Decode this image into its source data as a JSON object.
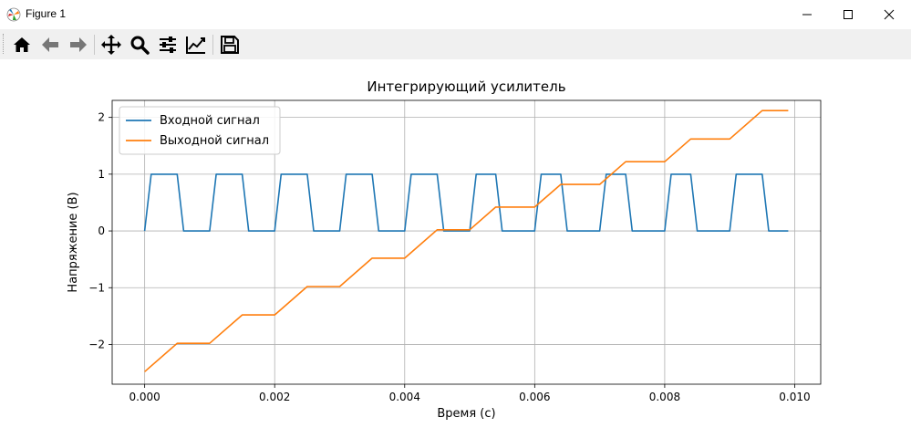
{
  "window": {
    "title": "Figure 1",
    "controls": {
      "minimize": "minimize-icon",
      "maximize": "maximize-icon",
      "close": "close-icon"
    }
  },
  "toolbar": {
    "buttons": [
      "home-icon",
      "back-arrow-icon",
      "forward-arrow-icon",
      "pan-icon",
      "zoom-icon",
      "configure-subplots-icon",
      "edit-axis-icon",
      "save-icon"
    ]
  },
  "chart_data": {
    "type": "line",
    "title": "Интегрирующий усилитель",
    "xlabel": "Время (с)",
    "ylabel": "Напряжение (В)",
    "xlim": [
      -0.0005,
      0.0104
    ],
    "ylim": [
      -2.7,
      2.3
    ],
    "xticks": [
      0.0,
      0.002,
      0.004,
      0.006,
      0.008,
      0.01
    ],
    "xtick_labels": [
      "0.000",
      "0.002",
      "0.004",
      "0.006",
      "0.008",
      "0.010"
    ],
    "yticks": [
      -2,
      -1,
      0,
      1,
      2
    ],
    "ytick_labels": [
      "−2",
      "−1",
      "0",
      "1",
      "2"
    ],
    "grid": true,
    "legend_position": "top-left",
    "series": [
      {
        "name": "Входной сигнал",
        "color": "#1f77b4",
        "x": [
          0.0,
          0.0001,
          0.0005,
          0.0006,
          0.001,
          0.0011,
          0.0015,
          0.0016,
          0.002,
          0.0021,
          0.0025,
          0.0026,
          0.003,
          0.0031,
          0.0035,
          0.0036,
          0.004,
          0.0041,
          0.0045,
          0.0046,
          0.005,
          0.0051,
          0.0054,
          0.0055,
          0.006,
          0.0061,
          0.0064,
          0.0065,
          0.007,
          0.0071,
          0.0074,
          0.0075,
          0.008,
          0.0081,
          0.0084,
          0.0085,
          0.009,
          0.0091,
          0.0095,
          0.0096,
          0.0099
        ],
        "y": [
          0,
          1,
          1,
          0,
          0,
          1,
          1,
          0,
          0,
          1,
          1,
          0,
          0,
          1,
          1,
          0,
          0,
          1,
          1,
          0,
          0,
          1,
          1,
          0,
          0,
          1,
          1,
          0,
          0,
          1,
          1,
          0,
          0,
          1,
          1,
          0,
          0,
          1,
          1,
          0,
          0
        ]
      },
      {
        "name": "Выходной сигнал",
        "color": "#ff7f0e",
        "x": [
          0.0,
          0.0005,
          0.001,
          0.0015,
          0.002,
          0.0025,
          0.003,
          0.0035,
          0.004,
          0.0045,
          0.005,
          0.0054,
          0.006,
          0.0064,
          0.007,
          0.0074,
          0.008,
          0.0084,
          0.009,
          0.0095,
          0.0099
        ],
        "y": [
          -2.48,
          -1.98,
          -1.98,
          -1.48,
          -1.48,
          -0.98,
          -0.98,
          -0.48,
          -0.48,
          0.02,
          0.02,
          0.42,
          0.42,
          0.82,
          0.82,
          1.22,
          1.22,
          1.62,
          1.62,
          2.12,
          2.12
        ]
      }
    ]
  }
}
